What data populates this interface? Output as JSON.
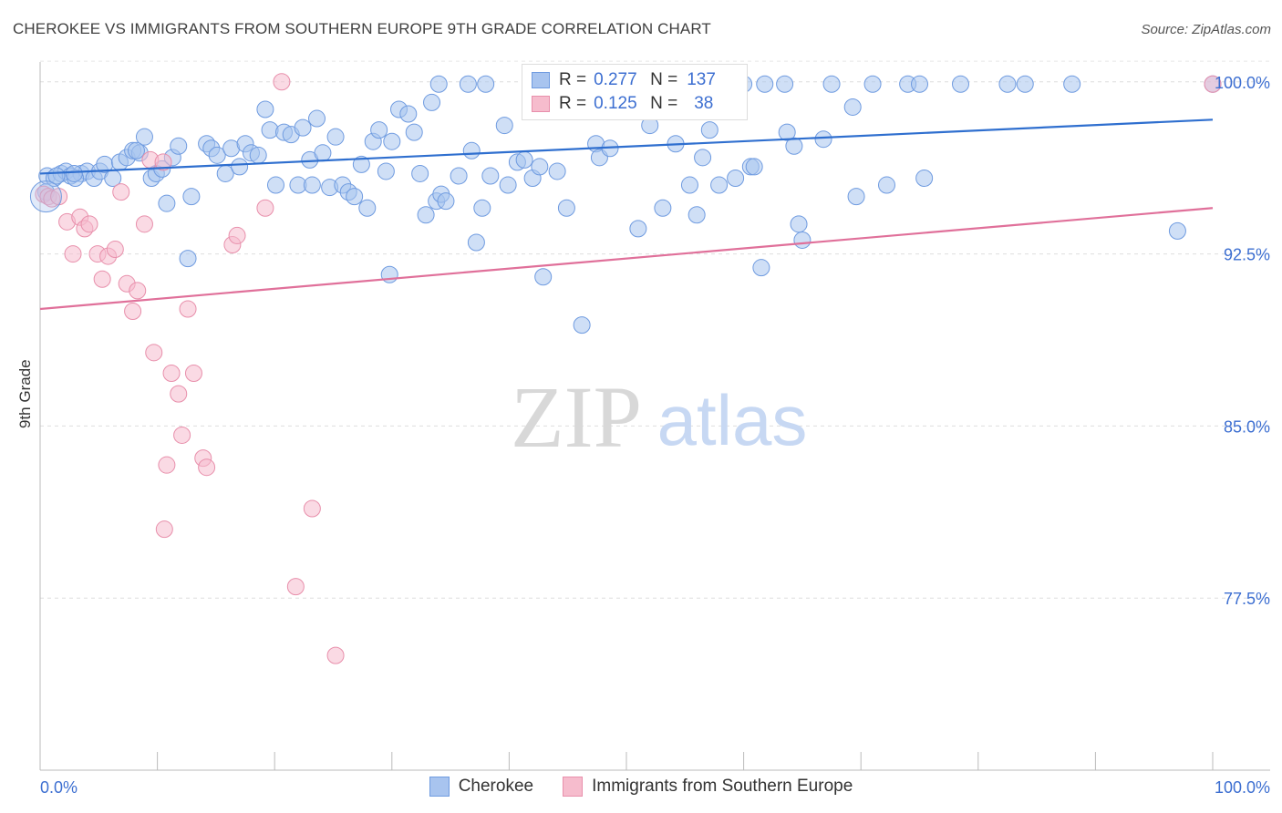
{
  "title": "CHEROKEE VS IMMIGRANTS FROM SOUTHERN EUROPE 9TH GRADE CORRELATION CHART",
  "source": "Source: ZipAtlas.com",
  "watermark": {
    "zip": "ZIP",
    "atlas": "atlas"
  },
  "legend": {
    "rows": [
      {
        "r_label": "R =",
        "r_value": "0.277",
        "n_label": "N =",
        "n_value": "137",
        "color": "#a8c4ef",
        "border": "#6f9be0"
      },
      {
        "r_label": "R =",
        "r_value": "0.125",
        "n_label": "N =",
        "n_value": "38",
        "color": "#f6bccd",
        "border": "#e88fab"
      }
    ]
  },
  "chart_data": {
    "type": "scatter",
    "title": "CHEROKEE VS IMMIGRANTS FROM SOUTHERN EUROPE 9TH GRADE CORRELATION CHART",
    "xlabel": "",
    "ylabel": "9th Grade",
    "xlim": [
      0,
      100
    ],
    "ylim": [
      70.0,
      101.5
    ],
    "x_tick_labels": [
      "0.0%",
      "100.0%"
    ],
    "y_ticks": [
      77.5,
      85.0,
      92.5,
      100.0
    ],
    "y_tick_labels": [
      "77.5%",
      "85.0%",
      "92.5%",
      "100.0%"
    ],
    "grid": true,
    "legend_position": "bottom",
    "series": [
      {
        "name": "Cherokee",
        "color": "#a8c4ef",
        "stroke": "#6f9be0",
        "line_color": "#2f6fcf",
        "trend": [
          [
            0,
            96.0
          ],
          [
            100,
            98.35
          ]
        ],
        "points": [
          [
            0.5,
            95.2
          ],
          [
            0.6,
            95.9
          ],
          [
            1.2,
            95.8
          ],
          [
            1.8,
            96.0
          ],
          [
            2.2,
            96.1
          ],
          [
            2.6,
            95.9
          ],
          [
            3.5,
            96.0
          ],
          [
            4.0,
            96.1
          ],
          [
            4.6,
            95.8
          ],
          [
            5.1,
            96.1
          ],
          [
            5.5,
            96.4
          ],
          [
            6.2,
            95.8
          ],
          [
            6.8,
            96.5
          ],
          [
            7.4,
            96.7
          ],
          [
            7.9,
            97.0
          ],
          [
            8.5,
            96.9
          ],
          [
            8.9,
            97.6
          ],
          [
            9.5,
            95.8
          ],
          [
            9.9,
            96.0
          ],
          [
            10.4,
            96.2
          ],
          [
            10.8,
            94.7
          ],
          [
            11.3,
            96.7
          ],
          [
            11.8,
            97.2
          ],
          [
            12.9,
            95.0
          ],
          [
            12.6,
            92.3
          ],
          [
            14.2,
            97.3
          ],
          [
            14.6,
            97.1
          ],
          [
            15.1,
            96.8
          ],
          [
            15.8,
            96.0
          ],
          [
            16.3,
            97.1
          ],
          [
            17.0,
            96.3
          ],
          [
            17.5,
            97.3
          ],
          [
            18.0,
            96.9
          ],
          [
            18.6,
            96.8
          ],
          [
            19.2,
            98.8
          ],
          [
            19.6,
            97.9
          ],
          [
            20.1,
            95.5
          ],
          [
            20.8,
            97.8
          ],
          [
            21.4,
            97.7
          ],
          [
            22.0,
            95.5
          ],
          [
            22.4,
            98.0
          ],
          [
            23.0,
            96.6
          ],
          [
            23.6,
            98.4
          ],
          [
            24.1,
            96.9
          ],
          [
            24.7,
            95.4
          ],
          [
            25.2,
            97.6
          ],
          [
            25.8,
            95.5
          ],
          [
            26.3,
            95.2
          ],
          [
            26.8,
            95.0
          ],
          [
            27.4,
            96.4
          ],
          [
            27.9,
            94.5
          ],
          [
            28.4,
            97.4
          ],
          [
            28.9,
            97.9
          ],
          [
            29.5,
            96.1
          ],
          [
            29.8,
            91.6
          ],
          [
            30.6,
            98.8
          ],
          [
            31.4,
            98.6
          ],
          [
            31.9,
            97.8
          ],
          [
            32.4,
            96.0
          ],
          [
            32.9,
            94.2
          ],
          [
            33.4,
            99.1
          ],
          [
            33.8,
            94.8
          ],
          [
            34.2,
            95.1
          ],
          [
            34.6,
            94.8
          ],
          [
            35.7,
            95.9
          ],
          [
            36.8,
            97.0
          ],
          [
            37.2,
            93.0
          ],
          [
            37.7,
            94.5
          ],
          [
            38.4,
            95.9
          ],
          [
            39.6,
            98.1
          ],
          [
            39.9,
            95.5
          ],
          [
            40.7,
            96.5
          ],
          [
            41.3,
            96.6
          ],
          [
            42.0,
            95.8
          ],
          [
            42.6,
            96.3
          ],
          [
            42.9,
            91.5
          ],
          [
            44.1,
            96.1
          ],
          [
            44.9,
            94.5
          ],
          [
            46.2,
            89.4
          ],
          [
            47.4,
            97.3
          ],
          [
            47.7,
            96.7
          ],
          [
            48.6,
            97.1
          ],
          [
            51.0,
            93.6
          ],
          [
            52.0,
            98.1
          ],
          [
            53.1,
            94.5
          ],
          [
            54.2,
            97.3
          ],
          [
            55.4,
            95.5
          ],
          [
            56.0,
            94.2
          ],
          [
            56.5,
            96.7
          ],
          [
            57.1,
            97.9
          ],
          [
            57.9,
            95.5
          ],
          [
            59.3,
            95.8
          ],
          [
            60.6,
            96.3
          ],
          [
            60.9,
            96.3
          ],
          [
            61.5,
            91.9
          ],
          [
            63.7,
            97.8
          ],
          [
            64.3,
            97.2
          ],
          [
            64.7,
            93.8
          ],
          [
            65.0,
            93.1
          ],
          [
            66.8,
            97.5
          ],
          [
            69.3,
            98.9
          ],
          [
            69.6,
            95.0
          ],
          [
            72.2,
            95.5
          ],
          [
            75.4,
            95.8
          ],
          [
            23.2,
            95.5
          ],
          [
            30.0,
            97.4
          ],
          [
            8.2,
            97.0
          ],
          [
            3.0,
            95.8
          ],
          [
            1.4,
            95.9
          ],
          [
            2.9,
            96.0
          ],
          [
            34.0,
            99.9
          ],
          [
            36.5,
            99.9
          ],
          [
            38.0,
            99.9
          ],
          [
            42.5,
            99.9
          ],
          [
            44.0,
            99.9
          ],
          [
            49.0,
            99.9
          ],
          [
            51.5,
            99.9
          ],
          [
            55.0,
            99.9
          ],
          [
            57.0,
            99.9
          ],
          [
            60.0,
            99.9
          ],
          [
            61.8,
            99.9
          ],
          [
            63.5,
            99.9
          ],
          [
            67.5,
            99.9
          ],
          [
            71.0,
            99.9
          ],
          [
            74.0,
            99.9
          ],
          [
            75.0,
            99.9
          ],
          [
            78.5,
            99.9
          ],
          [
            82.5,
            99.9
          ],
          [
            84.0,
            99.9
          ],
          [
            88.0,
            99.9
          ],
          [
            48.0,
            99.9
          ],
          [
            54.0,
            99.9
          ],
          [
            44.5,
            99.9
          ],
          [
            58.5,
            99.9
          ],
          [
            97.0,
            93.5
          ],
          [
            100.0,
            99.9
          ],
          [
            59.0,
            99.9
          ]
        ]
      },
      {
        "name": "Immigrants from Southern Europe",
        "color": "#f6bccd",
        "stroke": "#e88fab",
        "line_color": "#e0709a",
        "trend": [
          [
            0,
            90.1
          ],
          [
            100,
            94.5
          ]
        ],
        "points": [
          [
            0.3,
            95.1
          ],
          [
            0.7,
            95.0
          ],
          [
            1.0,
            94.9
          ],
          [
            1.6,
            95.0
          ],
          [
            2.3,
            93.9
          ],
          [
            2.8,
            92.5
          ],
          [
            3.4,
            94.1
          ],
          [
            3.8,
            93.6
          ],
          [
            4.2,
            93.8
          ],
          [
            4.9,
            92.5
          ],
          [
            5.3,
            91.4
          ],
          [
            5.8,
            92.4
          ],
          [
            6.4,
            92.7
          ],
          [
            6.9,
            95.2
          ],
          [
            7.4,
            91.2
          ],
          [
            7.9,
            90.0
          ],
          [
            8.3,
            90.9
          ],
          [
            8.9,
            93.8
          ],
          [
            9.4,
            96.6
          ],
          [
            9.7,
            88.2
          ],
          [
            10.5,
            96.5
          ],
          [
            11.2,
            87.3
          ],
          [
            11.8,
            86.4
          ],
          [
            12.1,
            84.6
          ],
          [
            12.6,
            90.1
          ],
          [
            13.1,
            87.3
          ],
          [
            13.9,
            83.6
          ],
          [
            14.2,
            83.2
          ],
          [
            16.4,
            92.9
          ],
          [
            16.8,
            93.3
          ],
          [
            19.2,
            94.5
          ],
          [
            20.6,
            100.0
          ],
          [
            21.8,
            78.0
          ],
          [
            25.2,
            75.0
          ],
          [
            23.2,
            81.4
          ],
          [
            10.6,
            80.5
          ],
          [
            10.8,
            83.3
          ],
          [
            100.0,
            99.9
          ]
        ]
      }
    ]
  }
}
